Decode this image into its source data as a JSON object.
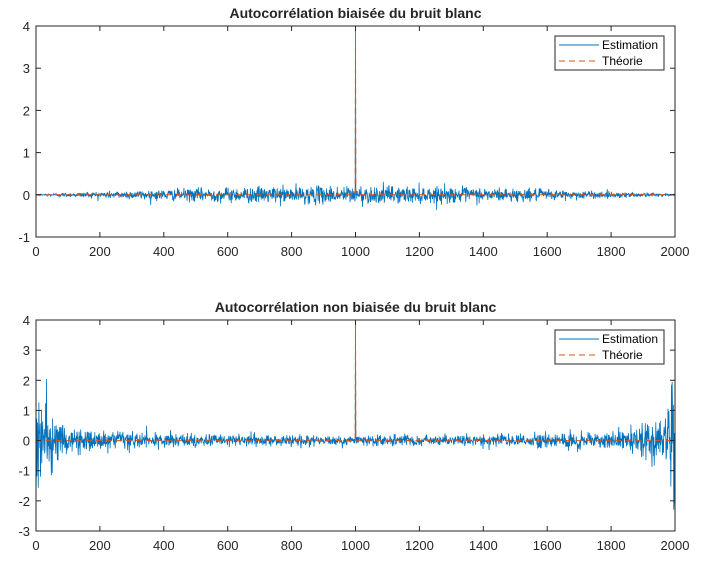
{
  "chart_data": [
    {
      "type": "line",
      "title": "Autocorrélation biaisée du bruit blanc",
      "xlabel": "",
      "ylabel": "",
      "xlim": [
        0,
        2000
      ],
      "ylim": [
        -1,
        4
      ],
      "xticks": [
        "0",
        "200",
        "400",
        "600",
        "800",
        "1000",
        "1200",
        "1400",
        "1600",
        "1800",
        "2000"
      ],
      "yticks": [
        "-1",
        "0",
        "1",
        "2",
        "3",
        "4"
      ],
      "grid": false,
      "legend_position": "top-right",
      "series": [
        {
          "name": "Estimation",
          "color": "#0072BD",
          "style": "solid",
          "peak": {
            "x": 1000,
            "y": 4.0
          },
          "noise_envelope": {
            "x": [
              0,
              100,
              200,
              300,
              400,
              500,
              600,
              700,
              800,
              900,
              1000,
              1100,
              1200,
              1300,
              1400,
              1500,
              1600,
              1700,
              1800,
              1900,
              2000
            ],
            "amplitude": [
              0.02,
              0.06,
              0.09,
              0.12,
              0.15,
              0.18,
              0.2,
              0.22,
              0.23,
              0.24,
              0.25,
              0.24,
              0.23,
              0.22,
              0.2,
              0.18,
              0.15,
              0.12,
              0.09,
              0.06,
              0.02
            ]
          }
        },
        {
          "name": "Théorie",
          "color": "#D95319",
          "style": "dashed",
          "x": [
            0,
            999,
            1000,
            1001,
            2000
          ],
          "y": [
            0,
            0,
            4,
            0,
            0
          ]
        }
      ]
    },
    {
      "type": "line",
      "title": "Autocorrélation non biaisée du bruit blanc",
      "xlabel": "",
      "ylabel": "",
      "xlim": [
        0,
        2000
      ],
      "ylim": [
        -3,
        4
      ],
      "xticks": [
        "0",
        "200",
        "400",
        "600",
        "800",
        "1000",
        "1200",
        "1400",
        "1600",
        "1800",
        "2000"
      ],
      "yticks": [
        "-3",
        "-2",
        "-1",
        "0",
        "1",
        "2",
        "3",
        "4"
      ],
      "grid": false,
      "legend_position": "top-right",
      "series": [
        {
          "name": "Estimation",
          "color": "#0072BD",
          "style": "solid",
          "peak": {
            "x": 1000,
            "y": 4.0
          },
          "noise_envelope": {
            "x": [
              0,
              20,
              50,
              100,
              150,
              200,
              300,
              400,
              600,
              800,
              1000,
              1200,
              1400,
              1600,
              1700,
              1800,
              1850,
              1900,
              1950,
              1980,
              2000
            ],
            "amplitude": [
              2.8,
              1.6,
              1.1,
              0.55,
              0.42,
              0.36,
              0.3,
              0.27,
              0.24,
              0.22,
              0.22,
              0.22,
              0.24,
              0.27,
              0.3,
              0.36,
              0.42,
              0.55,
              1.1,
              1.6,
              2.8
            ]
          }
        },
        {
          "name": "Théorie",
          "color": "#D95319",
          "style": "dashed",
          "x": [
            0,
            999,
            1000,
            1001,
            2000
          ],
          "y": [
            0,
            0,
            4,
            0,
            0
          ]
        }
      ]
    }
  ]
}
